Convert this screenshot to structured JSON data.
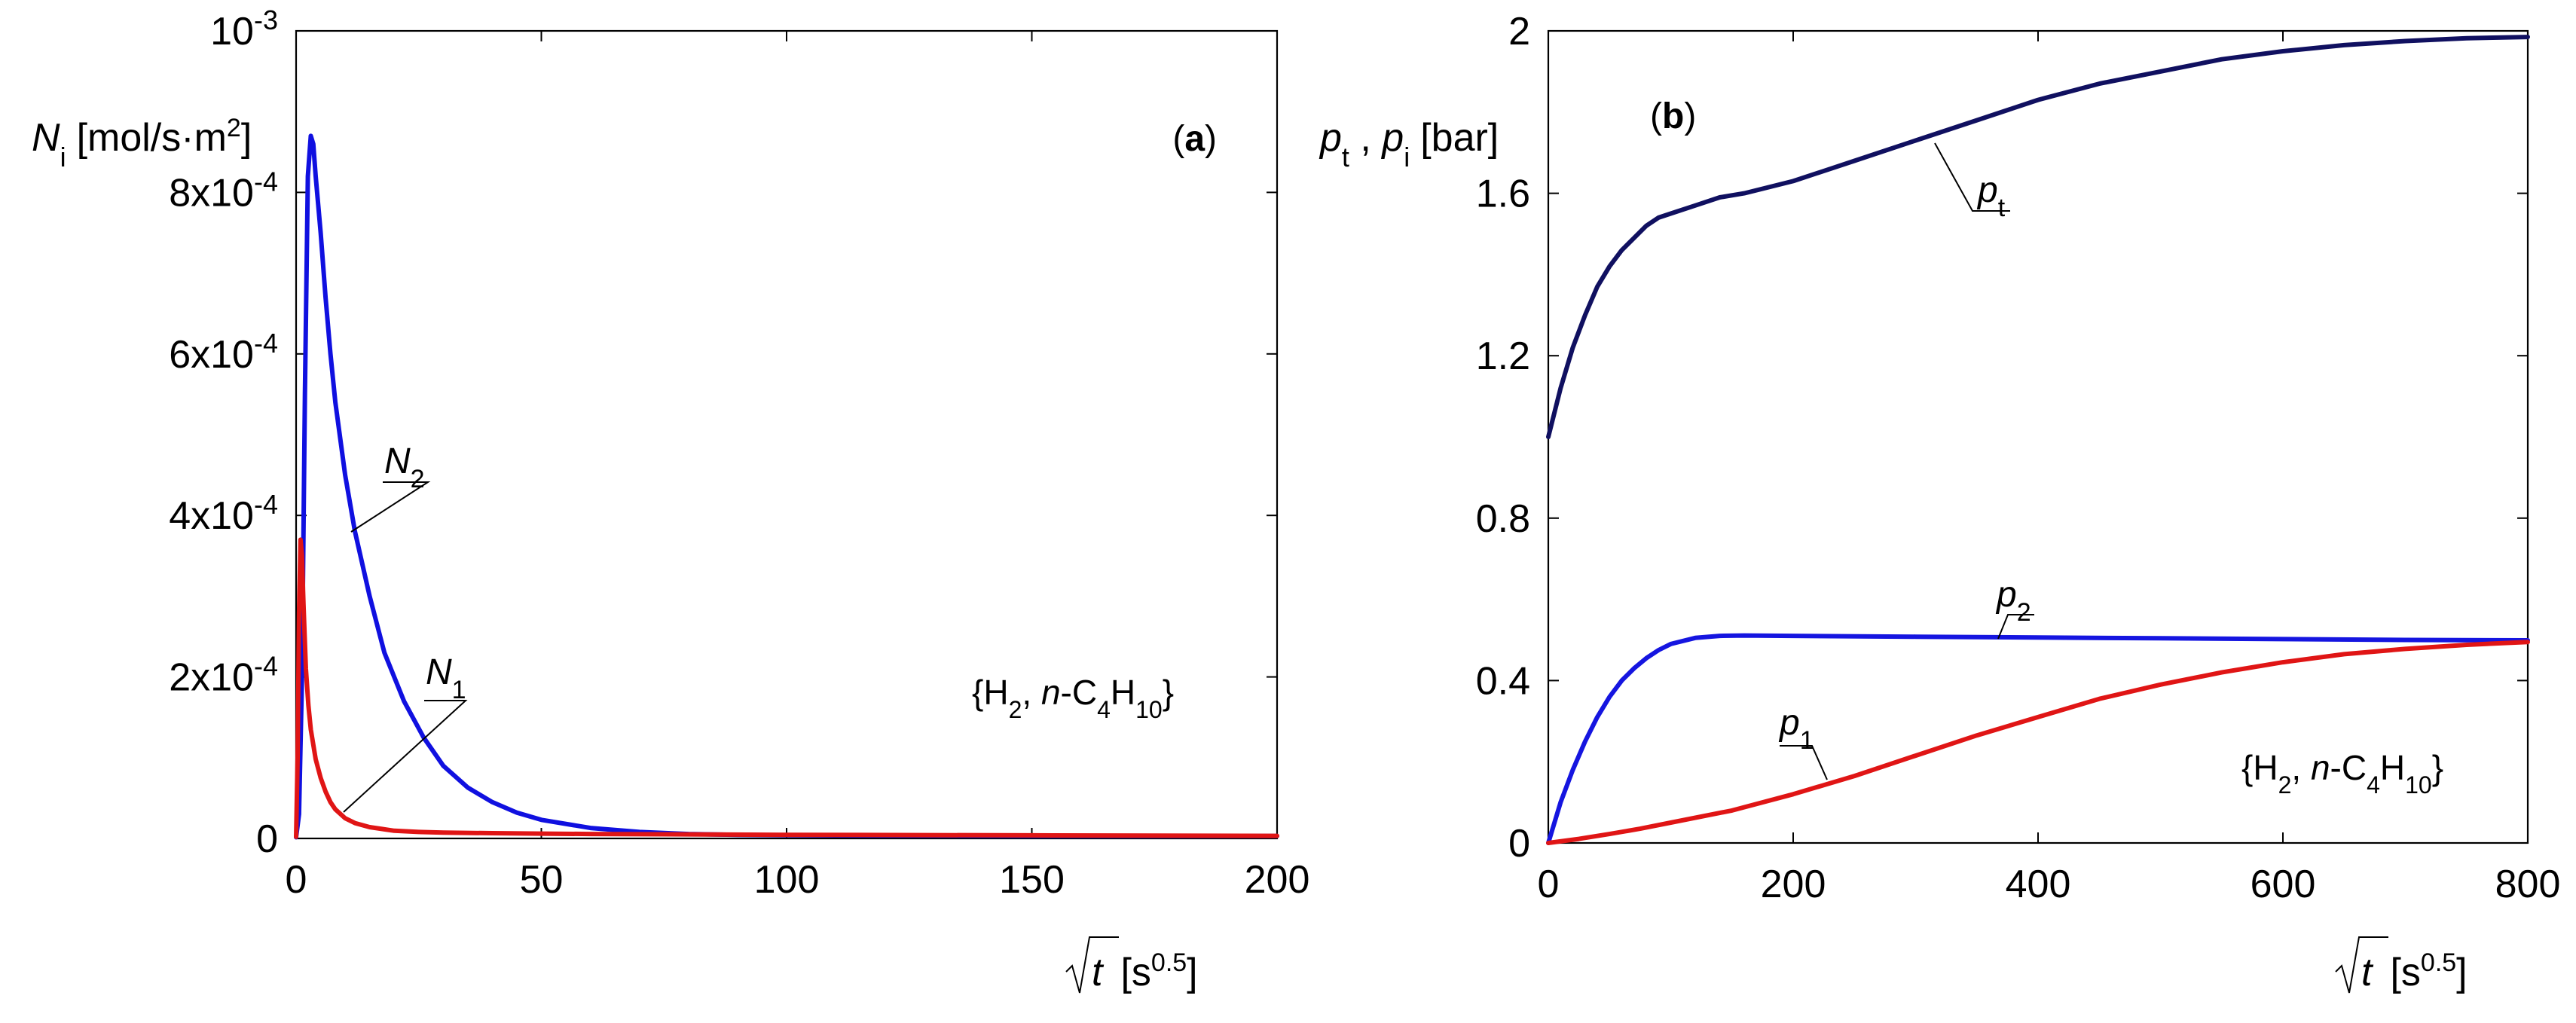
{
  "chart_data": [
    {
      "panel": "a",
      "type": "line",
      "panel_tag": "a",
      "ylabel": {
        "symbol": "N",
        "sub": "i",
        "units_pre": "[mol/s·m",
        "units_sup": "2",
        "units_post": "]"
      },
      "xlabel": {
        "symbol": "t",
        "units_pre": "[s",
        "units_sup": "0.5",
        "units_post": "]"
      },
      "xlim": [
        0,
        200
      ],
      "ylim": [
        0,
        0.001
      ],
      "x_ticks": [
        0,
        50,
        100,
        150,
        200
      ],
      "x_tick_labels": [
        "0",
        "50",
        "100",
        "150",
        "200"
      ],
      "y_ticks": [
        0,
        0.0002,
        0.0004,
        0.0006,
        0.0008,
        0.001
      ],
      "y_tick_labels": [
        {
          "mant": "0",
          "exp": ""
        },
        {
          "mant": "2x10",
          "exp": "-4"
        },
        {
          "mant": "4x10",
          "exp": "-4"
        },
        {
          "mant": "6x10",
          "exp": "-4"
        },
        {
          "mant": "8x10",
          "exp": "-4"
        },
        {
          "mant": "10",
          "exp": "-3"
        }
      ],
      "annotation": {
        "pre": "{H",
        "s1": "2",
        "mid1": ", ",
        "ital": "n",
        "mid2": "-C",
        "s2": "4",
        "mid3": "H",
        "s3": "10",
        "post": "}"
      },
      "series": [
        {
          "name": "N2",
          "sym": "N",
          "sub": "2",
          "color": "#1010e0",
          "x": [
            0,
            0.6,
            1.2,
            1.8,
            2.4,
            3,
            3.5,
            4,
            5,
            6,
            7,
            8,
            10,
            12,
            15,
            18,
            22,
            26,
            30,
            35,
            40,
            45,
            50,
            60,
            70,
            80,
            90,
            100,
            120,
            150,
            200
          ],
          "y": [
            1.5e-06,
            3e-05,
            0.0002,
            0.00055,
            0.00082,
            0.00087,
            0.00086,
            0.00082,
            0.00075,
            0.00067,
            0.0006,
            0.00054,
            0.00045,
            0.00038,
            0.0003,
            0.00023,
            0.00017,
            0.000125,
            9e-05,
            6.3e-05,
            4.5e-05,
            3.2e-05,
            2.3e-05,
            1.3e-05,
            8e-06,
            5.5e-06,
            4.5e-06,
            4e-06,
            3.5e-06,
            3.2e-06,
            3e-06
          ]
        },
        {
          "name": "N1",
          "sym": "N",
          "sub": "1",
          "color": "#e01515",
          "x": [
            0,
            0.3,
            0.6,
            0.9,
            1.2,
            1.5,
            2,
            2.5,
            3,
            4,
            5,
            6,
            7,
            8,
            10,
            12,
            15,
            20,
            25,
            30,
            40,
            50,
            60,
            80,
            100,
            150,
            200
          ],
          "y": [
            2e-06,
            0.0001,
            0.00028,
            0.00037,
            0.00035,
            0.00029,
            0.00021,
            0.000165,
            0.000135,
            9.8e-05,
            7.5e-05,
            5.8e-05,
            4.5e-05,
            3.6e-05,
            2.5e-05,
            1.9e-05,
            1.4e-05,
            9.5e-06,
            8e-06,
            7.2e-06,
            6.5e-06,
            6e-06,
            5.5e-06,
            5e-06,
            4.5e-06,
            3.8e-06,
            3.2e-06
          ]
        }
      ]
    },
    {
      "panel": "b",
      "type": "line",
      "panel_tag": "b",
      "ylabel": {
        "s1": "p",
        "sub1": "t",
        "sep": " , ",
        "s2": "p",
        "sub2": "i",
        "units": "[bar]"
      },
      "xlabel": {
        "symbol": "t",
        "units_pre": "[s",
        "units_sup": "0.5",
        "units_post": "]"
      },
      "xlim": [
        0,
        800
      ],
      "ylim": [
        0,
        2
      ],
      "x_ticks": [
        0,
        200,
        400,
        600,
        800
      ],
      "x_tick_labels": [
        "0",
        "200",
        "400",
        "600",
        "800"
      ],
      "y_ticks": [
        0,
        0.4,
        0.8,
        1.2,
        1.6,
        2
      ],
      "y_tick_labels": [
        "0",
        "0.4",
        "0.8",
        "1.2",
        "1.6",
        "2"
      ],
      "annotation": {
        "pre": "{H",
        "s1": "2",
        "mid1": ", ",
        "ital": "n",
        "mid2": "-C",
        "s2": "4",
        "mid3": "H",
        "s3": "10",
        "post": "}"
      },
      "series": [
        {
          "name": "pt",
          "sym": "p",
          "sub": "t",
          "color": "#101060",
          "x": [
            0,
            10,
            20,
            30,
            40,
            50,
            60,
            70,
            80,
            90,
            100,
            120,
            140,
            160,
            200,
            250,
            300,
            350,
            400,
            450,
            500,
            550,
            600,
            650,
            700,
            750,
            800
          ],
          "y": [
            1.0,
            1.12,
            1.22,
            1.3,
            1.37,
            1.42,
            1.46,
            1.49,
            1.52,
            1.54,
            1.55,
            1.57,
            1.59,
            1.6,
            1.63,
            1.68,
            1.73,
            1.78,
            1.83,
            1.87,
            1.9,
            1.93,
            1.95,
            1.965,
            1.975,
            1.982,
            1.985
          ]
        },
        {
          "name": "p2",
          "sym": "p",
          "sub": "2",
          "color": "#1515e0",
          "x": [
            0,
            10,
            20,
            30,
            40,
            50,
            60,
            70,
            80,
            90,
            100,
            120,
            140,
            160,
            200,
            300,
            400,
            500,
            600,
            700,
            800
          ],
          "y": [
            0,
            0.1,
            0.18,
            0.25,
            0.31,
            0.36,
            0.4,
            0.43,
            0.455,
            0.475,
            0.49,
            0.505,
            0.51,
            0.511,
            0.51,
            0.508,
            0.506,
            0.504,
            0.502,
            0.5,
            0.499
          ]
        },
        {
          "name": "p1",
          "sym": "p",
          "sub": "1",
          "color": "#e01515",
          "x": [
            0,
            25,
            50,
            75,
            100,
            150,
            200,
            250,
            300,
            350,
            400,
            450,
            500,
            550,
            600,
            650,
            700,
            750,
            800
          ],
          "y": [
            0,
            0.01,
            0.022,
            0.035,
            0.05,
            0.08,
            0.12,
            0.165,
            0.215,
            0.265,
            0.31,
            0.355,
            0.39,
            0.42,
            0.445,
            0.465,
            0.478,
            0.488,
            0.495
          ]
        }
      ]
    }
  ]
}
